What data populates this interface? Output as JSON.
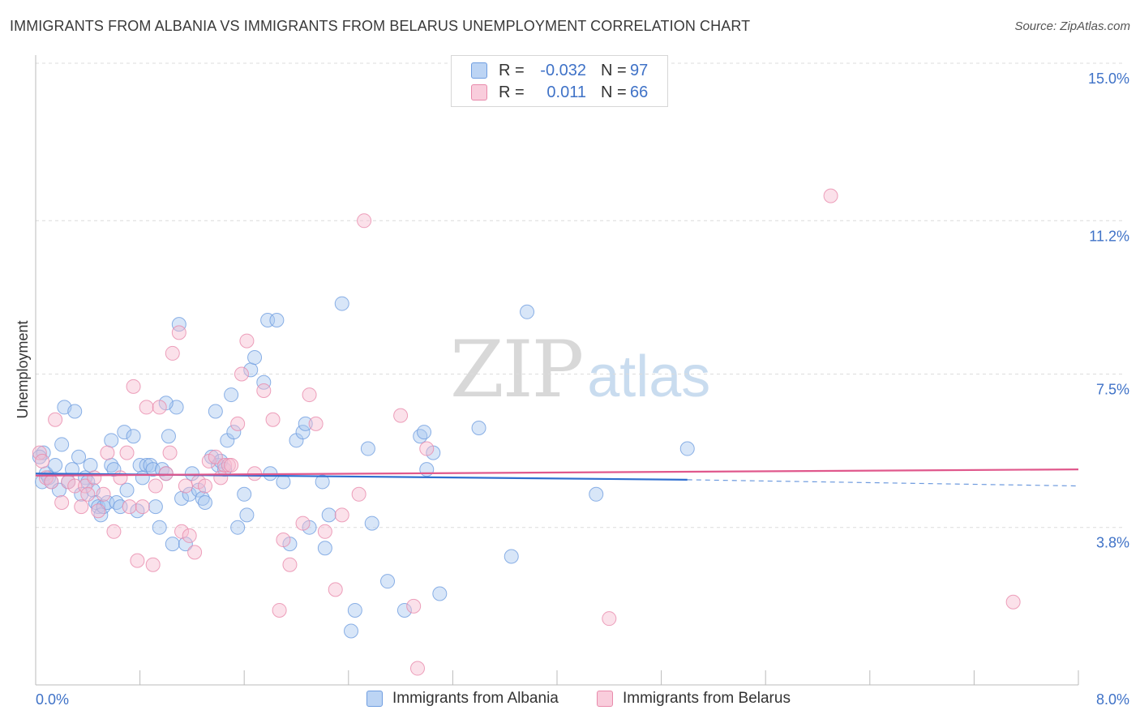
{
  "title": "IMMIGRANTS FROM ALBANIA VS IMMIGRANTS FROM BELARUS UNEMPLOYMENT CORRELATION CHART",
  "source": "Source: ZipAtlas.com",
  "watermark": {
    "zip": "ZIP",
    "atlas": "atlas"
  },
  "legend": {
    "rows": [
      {
        "r_label": "R =",
        "r_value": "-0.032",
        "n_label": "N =",
        "n_value": "97"
      },
      {
        "r_label": "R =",
        "r_value": "0.011",
        "n_label": "N =",
        "n_value": "66"
      }
    ]
  },
  "bottom_legend": [
    "Immigrants from Albania",
    "Immigrants from Belarus"
  ],
  "colors": {
    "albania_fill": "#a9c7ef",
    "albania_stroke": "#6f9de0",
    "albania_line": "#2f6fd0",
    "belarus_fill": "#f6bdd1",
    "belarus_stroke": "#e88aab",
    "belarus_line": "#e0588c",
    "axis_label": "#3f72c7",
    "grid": "#dcdcdc"
  },
  "chart_data": {
    "type": "scatter",
    "title": "IMMIGRANTS FROM ALBANIA VS IMMIGRANTS FROM BELARUS UNEMPLOYMENT CORRELATION CHART",
    "xlabel": "",
    "ylabel": "Unemployment",
    "xlim": [
      0,
      8
    ],
    "ylim": [
      0,
      15
    ],
    "x_tick_labels": [
      "0.0%",
      "8.0%"
    ],
    "y_ticks": [
      3.8,
      7.5,
      11.2,
      15.0
    ],
    "y_tick_labels": [
      "3.8%",
      "7.5%",
      "11.2%",
      "15.0%"
    ],
    "grid": true,
    "series": [
      {
        "name": "Immigrants from Albania",
        "r": -0.032,
        "n": 97,
        "trend": {
          "x0": 0,
          "y0": 5.1,
          "x1": 5.0,
          "y1": 4.95,
          "dash_to_x": 8.0,
          "dash_to_y": 4.8
        },
        "points": [
          [
            0.05,
            4.9
          ],
          [
            0.06,
            5.6
          ],
          [
            0.08,
            5.1
          ],
          [
            0.1,
            5.0
          ],
          [
            0.12,
            4.9
          ],
          [
            0.15,
            5.3
          ],
          [
            0.2,
            5.8
          ],
          [
            0.22,
            6.7
          ],
          [
            0.25,
            4.9
          ],
          [
            0.28,
            5.2
          ],
          [
            0.3,
            6.6
          ],
          [
            0.33,
            5.5
          ],
          [
            0.35,
            4.6
          ],
          [
            0.38,
            5.0
          ],
          [
            0.4,
            4.9
          ],
          [
            0.42,
            5.3
          ],
          [
            0.44,
            4.7
          ],
          [
            0.46,
            4.4
          ],
          [
            0.48,
            4.3
          ],
          [
            0.5,
            4.1
          ],
          [
            0.52,
            4.3
          ],
          [
            0.55,
            4.4
          ],
          [
            0.58,
            5.3
          ],
          [
            0.6,
            5.2
          ],
          [
            0.62,
            4.4
          ],
          [
            0.65,
            4.3
          ],
          [
            0.68,
            6.1
          ],
          [
            0.7,
            4.7
          ],
          [
            0.75,
            6.0
          ],
          [
            0.78,
            4.2
          ],
          [
            0.8,
            5.3
          ],
          [
            0.82,
            5.0
          ],
          [
            0.85,
            5.3
          ],
          [
            0.88,
            5.3
          ],
          [
            0.9,
            5.2
          ],
          [
            0.92,
            4.3
          ],
          [
            0.95,
            3.8
          ],
          [
            0.97,
            5.2
          ],
          [
            1.0,
            5.1
          ],
          [
            1.02,
            6.0
          ],
          [
            1.05,
            3.4
          ],
          [
            1.08,
            6.7
          ],
          [
            1.1,
            8.7
          ],
          [
            1.12,
            4.5
          ],
          [
            1.15,
            3.4
          ],
          [
            1.18,
            4.6
          ],
          [
            1.2,
            5.1
          ],
          [
            1.25,
            4.7
          ],
          [
            1.28,
            4.5
          ],
          [
            1.3,
            4.4
          ],
          [
            1.35,
            5.5
          ],
          [
            1.38,
            6.6
          ],
          [
            1.4,
            5.3
          ],
          [
            1.42,
            5.4
          ],
          [
            1.45,
            5.2
          ],
          [
            1.47,
            5.9
          ],
          [
            1.5,
            7.0
          ],
          [
            1.52,
            6.1
          ],
          [
            1.55,
            3.8
          ],
          [
            1.6,
            4.6
          ],
          [
            1.62,
            4.1
          ],
          [
            1.65,
            7.6
          ],
          [
            1.68,
            7.9
          ],
          [
            1.75,
            7.3
          ],
          [
            1.78,
            8.8
          ],
          [
            1.85,
            8.8
          ],
          [
            1.9,
            4.9
          ],
          [
            1.95,
            3.4
          ],
          [
            2.0,
            5.9
          ],
          [
            2.05,
            6.1
          ],
          [
            2.07,
            6.3
          ],
          [
            2.1,
            3.8
          ],
          [
            2.2,
            4.9
          ],
          [
            2.22,
            3.3
          ],
          [
            2.25,
            4.1
          ],
          [
            2.35,
            9.2
          ],
          [
            2.42,
            1.3
          ],
          [
            2.45,
            1.8
          ],
          [
            2.55,
            5.7
          ],
          [
            2.58,
            3.9
          ],
          [
            2.7,
            2.5
          ],
          [
            2.83,
            1.8
          ],
          [
            2.95,
            6.0
          ],
          [
            2.98,
            6.1
          ],
          [
            3.0,
            5.2
          ],
          [
            3.05,
            5.6
          ],
          [
            3.1,
            2.2
          ],
          [
            3.4,
            6.2
          ],
          [
            3.65,
            3.1
          ],
          [
            3.77,
            9.0
          ],
          [
            4.3,
            4.6
          ],
          [
            5.0,
            5.7
          ],
          [
            1.8,
            5.1
          ],
          [
            0.03,
            5.5
          ],
          [
            0.18,
            4.7
          ],
          [
            1.0,
            6.8
          ],
          [
            0.58,
            5.9
          ]
        ]
      },
      {
        "name": "Immigrants from Belarus",
        "r": 0.011,
        "n": 66,
        "trend": {
          "x0": 0,
          "y0": 5.05,
          "x1": 8.0,
          "y1": 5.2
        },
        "points": [
          [
            0.03,
            5.6
          ],
          [
            0.05,
            5.4
          ],
          [
            0.08,
            5.0
          ],
          [
            0.12,
            4.9
          ],
          [
            0.15,
            6.4
          ],
          [
            0.2,
            4.4
          ],
          [
            0.25,
            4.9
          ],
          [
            0.3,
            4.8
          ],
          [
            0.35,
            4.3
          ],
          [
            0.38,
            4.8
          ],
          [
            0.4,
            4.6
          ],
          [
            0.45,
            5.0
          ],
          [
            0.48,
            4.2
          ],
          [
            0.52,
            4.6
          ],
          [
            0.55,
            5.6
          ],
          [
            0.6,
            3.7
          ],
          [
            0.65,
            5.0
          ],
          [
            0.7,
            5.6
          ],
          [
            0.72,
            4.3
          ],
          [
            0.75,
            7.2
          ],
          [
            0.78,
            3.0
          ],
          [
            0.82,
            4.3
          ],
          [
            0.85,
            6.7
          ],
          [
            0.9,
            2.9
          ],
          [
            0.92,
            4.8
          ],
          [
            0.95,
            6.7
          ],
          [
            1.0,
            5.1
          ],
          [
            1.03,
            5.6
          ],
          [
            1.05,
            8.0
          ],
          [
            1.1,
            8.5
          ],
          [
            1.12,
            3.7
          ],
          [
            1.15,
            4.8
          ],
          [
            1.18,
            3.6
          ],
          [
            1.22,
            3.2
          ],
          [
            1.25,
            4.9
          ],
          [
            1.3,
            4.8
          ],
          [
            1.33,
            5.4
          ],
          [
            1.38,
            5.5
          ],
          [
            1.42,
            5.0
          ],
          [
            1.45,
            5.3
          ],
          [
            1.48,
            5.3
          ],
          [
            1.5,
            5.3
          ],
          [
            1.55,
            6.3
          ],
          [
            1.58,
            7.5
          ],
          [
            1.62,
            8.3
          ],
          [
            1.68,
            5.1
          ],
          [
            1.75,
            7.1
          ],
          [
            1.82,
            6.4
          ],
          [
            1.87,
            1.8
          ],
          [
            1.9,
            3.5
          ],
          [
            1.95,
            2.9
          ],
          [
            2.05,
            3.9
          ],
          [
            2.1,
            7.0
          ],
          [
            2.15,
            6.3
          ],
          [
            2.22,
            3.7
          ],
          [
            2.3,
            2.3
          ],
          [
            2.35,
            4.1
          ],
          [
            2.48,
            4.6
          ],
          [
            2.52,
            11.2
          ],
          [
            2.8,
            6.5
          ],
          [
            2.9,
            1.9
          ],
          [
            2.93,
            0.4
          ],
          [
            3.0,
            5.7
          ],
          [
            4.4,
            1.6
          ],
          [
            6.1,
            11.8
          ],
          [
            7.5,
            2.0
          ]
        ]
      }
    ]
  }
}
